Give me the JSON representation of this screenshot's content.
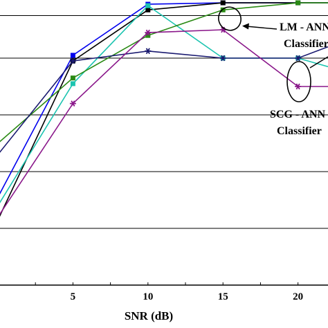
{
  "chart_data": {
    "type": "line",
    "xlabel": "SNR (dB)",
    "x_ticks": [
      5,
      10,
      15,
      20
    ],
    "xlim": [
      0,
      22
    ],
    "ylim": [
      0,
      100
    ],
    "y_gridlines": [
      20,
      40,
      60,
      80,
      95
    ],
    "grid": "horizontal",
    "series": [
      {
        "color": "#0000ee",
        "marker": "square",
        "x": [
          0,
          5,
          10,
          15,
          20,
          22
        ],
        "y": [
          31,
          81,
          99,
          99.5,
          99.5,
          99.5
        ]
      },
      {
        "color": "#000000",
        "marker": "square",
        "x": [
          0,
          5,
          10,
          15,
          20,
          22
        ],
        "y": [
          23,
          79,
          97,
          99.5,
          99.5,
          99.5
        ]
      },
      {
        "color": "#1cc4b0",
        "marker": "square",
        "x": [
          0,
          5,
          10,
          15,
          20,
          22
        ],
        "y": [
          28,
          71,
          98.5,
          80,
          80,
          77
        ]
      },
      {
        "color": "#2a8a14",
        "marker": "square",
        "x": [
          0,
          5,
          10,
          15,
          20,
          22
        ],
        "y": [
          50,
          73,
          88,
          97,
          99.5,
          99.5
        ]
      },
      {
        "color": "#1a1a70",
        "marker": "star",
        "x": [
          0,
          5,
          10,
          15,
          20,
          22
        ],
        "y": [
          46,
          79,
          82.5,
          80,
          80,
          84
        ]
      },
      {
        "color": "#8a178a",
        "marker": "star",
        "x": [
          0,
          5,
          10,
          15,
          20,
          22
        ],
        "y": [
          24,
          64,
          89,
          90,
          70,
          70
        ]
      }
    ],
    "annotations": [
      {
        "lines": [
          "LM - ANN",
          "Classifier"
        ]
      },
      {
        "lines": [
          "SCG - ANN",
          "Classifier"
        ]
      }
    ]
  }
}
